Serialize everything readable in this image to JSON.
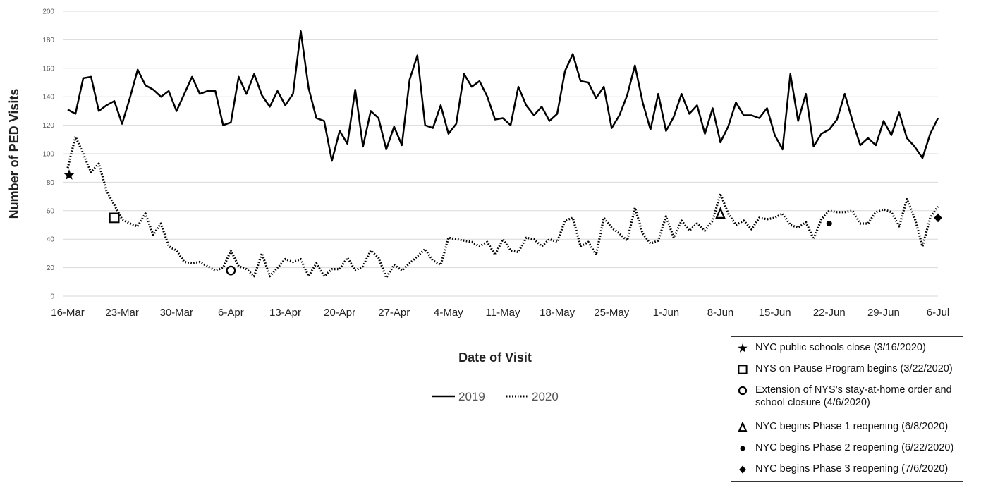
{
  "chart_data": {
    "type": "line",
    "title": "",
    "xlabel": "Date of Visit",
    "ylabel": "Number of PED Visits",
    "ylim": [
      0,
      200
    ],
    "yticks": [
      0,
      20,
      40,
      60,
      80,
      100,
      120,
      140,
      160,
      180,
      200
    ],
    "x_start": "16-Mar",
    "x_tick_labels": [
      "16-Mar",
      "23-Mar",
      "30-Mar",
      "6-Apr",
      "13-Apr",
      "20-Apr",
      "27-Apr",
      "4-May",
      "11-May",
      "18-May",
      "25-May",
      "1-Jun",
      "8-Jun",
      "15-Jun",
      "22-Jun",
      "29-Jun",
      "6-Jul"
    ],
    "grid": true,
    "legend_position": "bottom-center",
    "series": [
      {
        "name": "2019",
        "style": "solid",
        "color": "#000000",
        "values": [
          131,
          128,
          153,
          154,
          130,
          134,
          137,
          121,
          139,
          159,
          148,
          145,
          140,
          144,
          130,
          142,
          154,
          142,
          144,
          144,
          120,
          122,
          154,
          142,
          156,
          141,
          133,
          144,
          134,
          142,
          186,
          146,
          125,
          123,
          95,
          116,
          107,
          145,
          105,
          130,
          125,
          103,
          119,
          106,
          152,
          169,
          120,
          118,
          134,
          114,
          121,
          156,
          147,
          151,
          140,
          124,
          125,
          120,
          147,
          134,
          127,
          133,
          123,
          128,
          158,
          170,
          151,
          150,
          139,
          147,
          118,
          127,
          141,
          162,
          136,
          117,
          142,
          116,
          126,
          142,
          128,
          134,
          114,
          132,
          108,
          119,
          136,
          127,
          127,
          125,
          132,
          113,
          103,
          156,
          123,
          142,
          105,
          114,
          117,
          124,
          142,
          123,
          106,
          111,
          106,
          123,
          113,
          129,
          111,
          105,
          97,
          114,
          125
        ]
      },
      {
        "name": "2020",
        "style": "dotted",
        "color": "#000000",
        "values": [
          90,
          112,
          100,
          87,
          93,
          74,
          64,
          54,
          51,
          49,
          58,
          43,
          51,
          35,
          32,
          24,
          23,
          24,
          21,
          18,
          20,
          32,
          21,
          19,
          14,
          30,
          14,
          20,
          26,
          24,
          26,
          14,
          23,
          14,
          19,
          19,
          27,
          18,
          21,
          32,
          27,
          13,
          22,
          18,
          23,
          28,
          33,
          25,
          22,
          41,
          40,
          39,
          38,
          35,
          38,
          29,
          40,
          32,
          31,
          41,
          40,
          35,
          40,
          38,
          53,
          55,
          35,
          38,
          29,
          55,
          48,
          44,
          39,
          62,
          44,
          37,
          39,
          56,
          41,
          53,
          46,
          51,
          46,
          53,
          72,
          58,
          50,
          53,
          47,
          55,
          54,
          55,
          58,
          50,
          48,
          52,
          40,
          54,
          60,
          59,
          59,
          60,
          51,
          51,
          59,
          61,
          59,
          49,
          68,
          55,
          35,
          55,
          63
        ]
      }
    ],
    "annotations": [
      {
        "marker": "star",
        "series": "2020",
        "index": 0,
        "value": 85
      },
      {
        "marker": "open-square",
        "series": "2020",
        "index": 6,
        "value": 55
      },
      {
        "marker": "open-circle",
        "series": "2020",
        "index": 21,
        "value": 18
      },
      {
        "marker": "open-triangle",
        "series": "2020",
        "index": 84,
        "value": 58
      },
      {
        "marker": "filled-circle",
        "series": "2020",
        "index": 98,
        "value": 51
      },
      {
        "marker": "filled-diamond",
        "series": "2020",
        "index": 112,
        "value": 55
      }
    ]
  },
  "events_legend": [
    {
      "marker": "star",
      "text": "NYC public schools close (3/16/2020)"
    },
    {
      "marker": "open-square",
      "text": "NYS on Pause Program begins (3/22/2020)"
    },
    {
      "marker": "open-circle",
      "text": "Extension of NYS’s stay-at-home order and school closure (4/6/2020)"
    },
    {
      "marker": "open-triangle",
      "text": "NYC begins Phase 1 reopening (6/8/2020)"
    },
    {
      "marker": "filled-circle",
      "text": "NYC begins Phase 2 reopening (6/22/2020)"
    },
    {
      "marker": "filled-diamond",
      "text": "NYC begins Phase 3 reopening (7/6/2020)"
    }
  ]
}
